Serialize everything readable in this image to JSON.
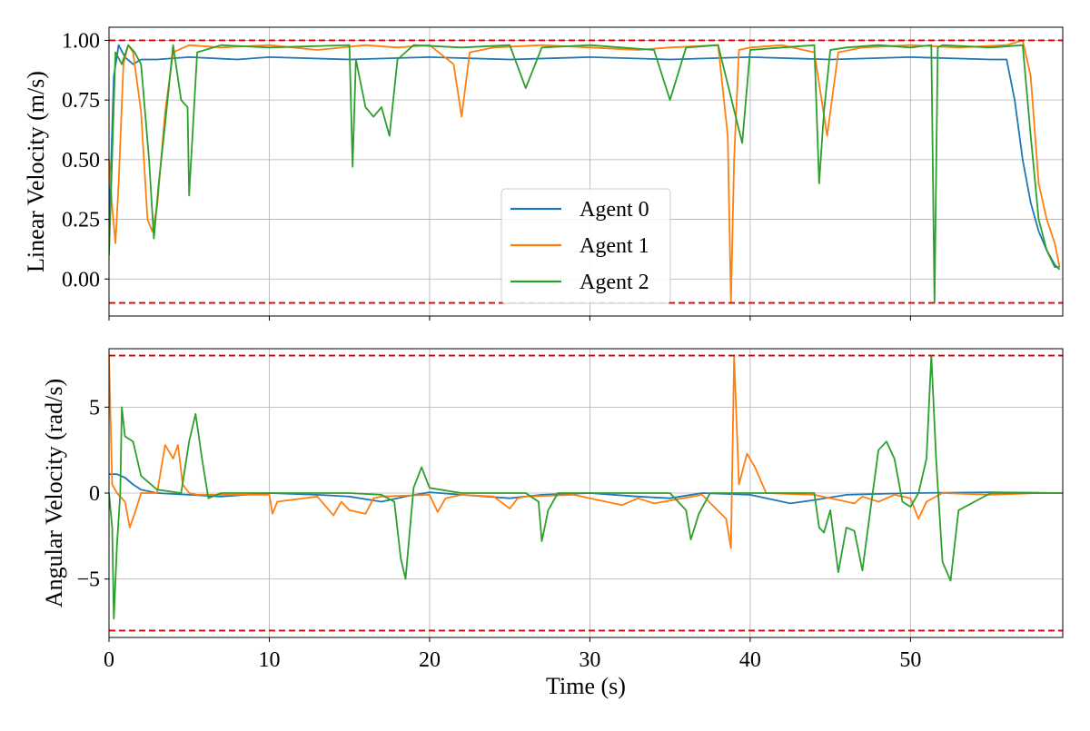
{
  "chart_data": [
    {
      "type": "line",
      "ylabel": "Linear Velocity (m/s)",
      "xlabel": "",
      "xlim": [
        0,
        59.5
      ],
      "ylim": [
        -0.155,
        1.055
      ],
      "xticks": [
        0,
        10,
        20,
        30,
        40,
        50
      ],
      "xtick_labels_visible": false,
      "yticks": [
        {
          "value": 0.0,
          "label": "0.00"
        },
        {
          "value": 0.25,
          "label": "0.25"
        },
        {
          "value": 0.5,
          "label": "0.50"
        },
        {
          "value": 0.75,
          "label": "0.75"
        },
        {
          "value": 1.0,
          "label": "1.00"
        }
      ],
      "grid": true,
      "limits": [
        {
          "name": "upper-limit",
          "value": 1.0,
          "color": "#dd0000"
        },
        {
          "name": "lower-limit",
          "value": -0.1,
          "color": "#dd0000"
        }
      ],
      "legend": {
        "position": "lower-center"
      },
      "series": [
        {
          "name": "Agent 0",
          "color": "#1f77b4",
          "x": [
            0,
            0.3,
            0.6,
            1.0,
            1.5,
            2.0,
            3.0,
            5.0,
            8.0,
            10.0,
            15.0,
            20.0,
            25.0,
            30.0,
            35.0,
            40.0,
            45.0,
            50.0,
            55.0,
            56.0,
            56.5,
            57.0,
            57.5,
            58.0,
            58.5,
            59.0,
            59.3
          ],
          "y": [
            0.2,
            0.85,
            0.98,
            0.93,
            0.9,
            0.92,
            0.92,
            0.93,
            0.92,
            0.93,
            0.92,
            0.93,
            0.92,
            0.93,
            0.92,
            0.93,
            0.92,
            0.93,
            0.92,
            0.92,
            0.75,
            0.5,
            0.32,
            0.2,
            0.12,
            0.06,
            0.04
          ]
        },
        {
          "name": "Agent 1",
          "color": "#ff7f0e",
          "x": [
            0,
            0.2,
            0.4,
            0.6,
            0.9,
            1.2,
            1.5,
            2.0,
            2.4,
            2.7,
            3.0,
            3.5,
            4.0,
            5.0,
            7.0,
            10.0,
            13.0,
            16.0,
            18.0,
            20.0,
            21.5,
            22.0,
            22.5,
            24.0,
            27.0,
            30.0,
            33.0,
            35.0,
            38.0,
            38.6,
            38.8,
            39.0,
            39.3,
            40.0,
            42.0,
            44.0,
            44.8,
            45.5,
            47.0,
            50.0,
            53.0,
            56.0,
            57.0,
            57.5,
            58.0,
            58.5,
            59.0,
            59.3
          ],
          "y": [
            0.5,
            0.3,
            0.15,
            0.4,
            0.9,
            0.98,
            0.95,
            0.7,
            0.25,
            0.2,
            0.3,
            0.7,
            0.95,
            0.98,
            0.97,
            0.98,
            0.96,
            0.98,
            0.97,
            0.98,
            0.9,
            0.68,
            0.95,
            0.97,
            0.98,
            0.97,
            0.96,
            0.97,
            0.98,
            0.6,
            -0.1,
            0.5,
            0.96,
            0.97,
            0.98,
            0.95,
            0.6,
            0.95,
            0.97,
            0.98,
            0.97,
            0.98,
            1.0,
            0.85,
            0.4,
            0.25,
            0.15,
            0.05
          ]
        },
        {
          "name": "Agent 2",
          "color": "#2ca02c",
          "x": [
            0,
            0.4,
            0.8,
            1.2,
            1.6,
            2.0,
            2.5,
            2.8,
            3.1,
            3.5,
            4.0,
            4.5,
            4.9,
            5.0,
            5.5,
            7.0,
            10.0,
            15.0,
            15.2,
            15.4,
            16.0,
            16.5,
            17.0,
            17.5,
            18.0,
            19.0,
            22.0,
            25.0,
            26.0,
            27.0,
            30.0,
            34.0,
            35.0,
            36.0,
            38.0,
            39.5,
            40.0,
            42.0,
            44.0,
            44.3,
            44.6,
            45.0,
            46.0,
            48.0,
            50.0,
            51.3,
            51.5,
            51.7,
            52.0,
            55.0,
            57.0,
            57.5,
            58.0,
            58.5,
            59.0,
            59.3
          ],
          "y": [
            0.1,
            0.95,
            0.9,
            0.98,
            0.95,
            0.9,
            0.5,
            0.17,
            0.4,
            0.65,
            0.98,
            0.75,
            0.72,
            0.35,
            0.95,
            0.98,
            0.97,
            0.98,
            0.47,
            0.92,
            0.72,
            0.68,
            0.72,
            0.6,
            0.92,
            0.98,
            0.97,
            0.98,
            0.8,
            0.97,
            0.98,
            0.96,
            0.75,
            0.97,
            0.98,
            0.57,
            0.96,
            0.97,
            0.98,
            0.4,
            0.7,
            0.96,
            0.97,
            0.98,
            0.97,
            0.98,
            -0.1,
            0.97,
            0.98,
            0.97,
            0.98,
            0.6,
            0.25,
            0.12,
            0.05,
            0.05
          ]
        }
      ]
    },
    {
      "type": "line",
      "ylabel": "Angular Velocity (rad/s)",
      "xlabel": "Time (s)",
      "xlim": [
        0,
        59.5
      ],
      "ylim": [
        -8.4,
        8.4
      ],
      "xticks": [
        {
          "value": 0,
          "label": "0"
        },
        {
          "value": 10,
          "label": "10"
        },
        {
          "value": 20,
          "label": "20"
        },
        {
          "value": 30,
          "label": "30"
        },
        {
          "value": 40,
          "label": "40"
        },
        {
          "value": 50,
          "label": "50"
        }
      ],
      "yticks": [
        {
          "value": -5,
          "label": "−5"
        },
        {
          "value": 0,
          "label": "0"
        },
        {
          "value": 5,
          "label": "5"
        }
      ],
      "grid": true,
      "limits": [
        {
          "name": "upper-limit",
          "value": 8.0,
          "color": "#dd0000"
        },
        {
          "name": "lower-limit",
          "value": -8.0,
          "color": "#dd0000"
        }
      ],
      "series": [
        {
          "name": "Agent 0",
          "color": "#1f77b4",
          "x": [
            0,
            0.5,
            1.0,
            1.5,
            2.0,
            3.0,
            5.0,
            7.0,
            10.0,
            13.0,
            15.0,
            17.0,
            18.5,
            20.0,
            22.0,
            25.0,
            27.0,
            30.0,
            33.0,
            35.0,
            37.0,
            40.0,
            42.5,
            44.0,
            46.0,
            50.0,
            55.0,
            59.5
          ],
          "y": [
            1.1,
            1.1,
            0.9,
            0.5,
            0.2,
            0.0,
            -0.1,
            -0.2,
            0.0,
            -0.1,
            -0.2,
            -0.5,
            -0.2,
            0.05,
            -0.1,
            -0.3,
            -0.1,
            0.0,
            -0.2,
            -0.3,
            0.0,
            -0.1,
            -0.6,
            -0.4,
            -0.1,
            0.0,
            0.05,
            0.0
          ]
        },
        {
          "name": "Agent 1",
          "color": "#ff7f0e",
          "x": [
            0,
            0.2,
            0.5,
            1.0,
            1.3,
            1.6,
            2.0,
            3.0,
            3.5,
            4.0,
            4.3,
            4.6,
            5.0,
            5.5,
            10.0,
            10.2,
            10.5,
            13.0,
            14.0,
            14.5,
            15.0,
            16.0,
            16.5,
            17.0,
            20.0,
            20.5,
            21.0,
            22.0,
            24.0,
            25.0,
            25.5,
            26.0,
            29.0,
            30.0,
            32.0,
            33.0,
            34.0,
            37.0,
            38.5,
            38.8,
            39.0,
            39.3,
            39.8,
            40.3,
            41.0,
            44.0,
            46.5,
            47.0,
            48.0,
            49.0,
            50.0,
            50.5,
            51.0,
            52.0,
            55.0,
            58.0,
            59.5
          ],
          "y": [
            8.0,
            0.5,
            0.0,
            -0.5,
            -2.0,
            -1.2,
            0.0,
            0.0,
            2.8,
            2.0,
            2.8,
            0.5,
            0.0,
            -0.1,
            -0.1,
            -1.2,
            -0.5,
            -0.2,
            -1.3,
            -0.5,
            -1.0,
            -1.2,
            -0.3,
            -0.2,
            -0.1,
            -1.1,
            -0.3,
            -0.1,
            -0.2,
            -0.9,
            -0.3,
            -0.2,
            -0.1,
            -0.3,
            -0.7,
            -0.3,
            -0.6,
            -0.1,
            -1.5,
            -3.2,
            8.0,
            0.5,
            2.3,
            1.5,
            0.0,
            -0.1,
            -0.6,
            -0.2,
            -0.5,
            -0.1,
            -0.3,
            -1.5,
            -0.5,
            0.0,
            -0.1,
            0.0,
            0.0
          ]
        },
        {
          "name": "Agent 2",
          "color": "#2ca02c",
          "x": [
            0,
            0.2,
            0.3,
            0.5,
            0.7,
            0.8,
            1.0,
            1.5,
            2.0,
            3.0,
            4.5,
            5.0,
            5.4,
            5.8,
            6.2,
            7.0,
            10.0,
            15.0,
            17.0,
            17.8,
            18.2,
            18.5,
            19.0,
            19.5,
            20.0,
            22.0,
            26.0,
            26.8,
            27.0,
            27.4,
            28.0,
            30.0,
            35.0,
            36.0,
            36.3,
            36.8,
            37.5,
            40.0,
            44.0,
            44.3,
            44.6,
            45.0,
            45.5,
            46.0,
            46.5,
            47.0,
            47.5,
            48.0,
            48.5,
            49.0,
            49.5,
            50.0,
            50.5,
            51.0,
            51.3,
            51.6,
            52.0,
            52.5,
            53.0,
            55.0,
            59.5
          ],
          "y": [
            0,
            -2.0,
            -7.3,
            -3.0,
            0.0,
            5.0,
            3.3,
            3.0,
            1.0,
            0.2,
            0.0,
            3.0,
            4.6,
            2.0,
            -0.3,
            0.0,
            0.0,
            0.0,
            -0.1,
            -0.5,
            -3.8,
            -5.0,
            0.3,
            1.5,
            0.3,
            0.0,
            0.0,
            -0.5,
            -2.8,
            -1.0,
            0.0,
            0.0,
            0.0,
            -1.0,
            -2.7,
            -1.2,
            0.0,
            0.0,
            0.0,
            -2.0,
            -2.3,
            -1.0,
            -4.6,
            -2.0,
            -2.2,
            -4.5,
            -1.0,
            2.5,
            3.0,
            2.0,
            -0.5,
            -0.8,
            0.0,
            2.0,
            8.0,
            2.0,
            -4.0,
            -5.1,
            -1.0,
            0.0,
            0.0
          ]
        }
      ]
    }
  ]
}
